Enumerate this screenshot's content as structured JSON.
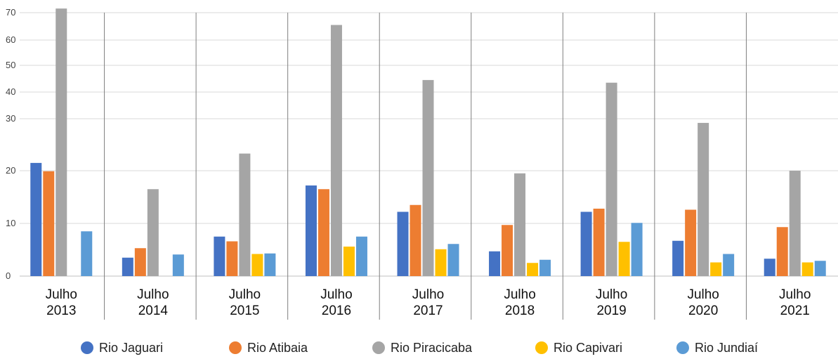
{
  "chart_data": {
    "type": "bar",
    "categories": [
      [
        "Julho",
        "2013"
      ],
      [
        "Julho",
        "2014"
      ],
      [
        "Julho",
        "2015"
      ],
      [
        "Julho",
        "2016"
      ],
      [
        "Julho",
        "2017"
      ],
      [
        "Julho",
        "2018"
      ],
      [
        "Julho",
        "2019"
      ],
      [
        "Julho",
        "2020"
      ],
      [
        "Julho",
        "2021"
      ]
    ],
    "series": [
      {
        "name": "Rio Jaguari",
        "color": "#4472C4",
        "values": [
          21.5,
          3.5,
          7.5,
          17.2,
          12.2,
          4.7,
          12.2,
          6.7,
          3.3
        ]
      },
      {
        "name": "Rio Atibaia",
        "color": "#ED7D31",
        "values": [
          19.9,
          5.3,
          6.6,
          16.5,
          13.5,
          9.7,
          12.8,
          12.6,
          9.3
        ]
      },
      {
        "name": "Rio Piracicaba",
        "color": "#A5A5A5",
        "values": [
          71.5,
          16.5,
          23.3,
          65.5,
          44.5,
          19.5,
          43.5,
          29.2,
          20.0
        ]
      },
      {
        "name": "Rio Capivari",
        "color": "#FFC000",
        "values": [
          null,
          null,
          4.2,
          5.6,
          5.1,
          2.5,
          6.5,
          2.6,
          2.6
        ]
      },
      {
        "name": "Rio Jundiaí",
        "color": "#5B9BD5",
        "values": [
          8.5,
          4.1,
          4.3,
          7.5,
          6.1,
          3.1,
          10.1,
          4.2,
          2.9
        ]
      }
    ],
    "y_ticks": [
      0,
      10,
      20,
      30,
      40,
      50,
      60,
      70
    ],
    "ylim": [
      0,
      72
    ],
    "y_scale": "non-linear (broken scale: 0–20 expanded, 20–70 compressed)",
    "grid": true,
    "legend_position": "bottom",
    "title": "",
    "xlabel": "",
    "ylabel": ""
  }
}
